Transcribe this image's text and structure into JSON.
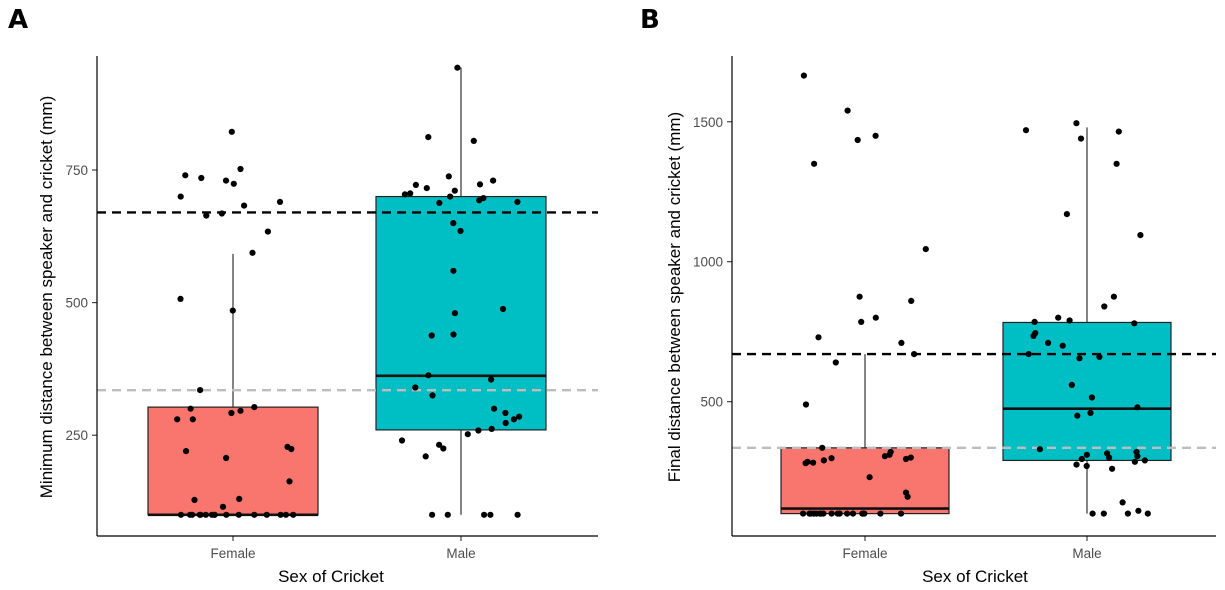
{
  "chart_data": [
    {
      "type": "box",
      "panel_label": "A",
      "xlabel": "Sex of Cricket",
      "ylabel": "Minimum distance between speaker and cricket (mm)",
      "categories": [
        "Female",
        "Male"
      ],
      "y_ticks": [
        250,
        500,
        750
      ],
      "ylim": [
        60,
        965
      ],
      "grid": false,
      "box_colors": [
        "#F8766D",
        "#00BFC4"
      ],
      "boxes": [
        {
          "category": "Female",
          "whisker_low": 100,
          "q1": 100,
          "median": 100,
          "q3": 303,
          "whisker_high": 592
        },
        {
          "category": "Male",
          "whisker_low": 100,
          "q1": 260,
          "median": 362,
          "q3": 700,
          "whisker_high": 943
        }
      ],
      "reference_lines": [
        {
          "value": 670,
          "style": "dashed",
          "color": "#000000"
        },
        {
          "value": 335,
          "style": "dashed",
          "color": "#bdbdbd"
        }
      ],
      "points": [
        {
          "category": "Female",
          "values": [
            822,
            752,
            740,
            735,
            730,
            724,
            700,
            690,
            683,
            668,
            664,
            634,
            594,
            507,
            485,
            335,
            303,
            300,
            296,
            292,
            280,
            280,
            228,
            224,
            220,
            207,
            163,
            128,
            115,
            130,
            100,
            100,
            100,
            100,
            100,
            100,
            100,
            100,
            100,
            100,
            100,
            100,
            100,
            100,
            100,
            100
          ]
        },
        {
          "category": "Male",
          "values": [
            943,
            812,
            805,
            738,
            730,
            723,
            722,
            716,
            711,
            706,
            704,
            700,
            697,
            693,
            690,
            688,
            650,
            635,
            560,
            488,
            480,
            440,
            438,
            363,
            355,
            340,
            325,
            300,
            292,
            285,
            280,
            273,
            262,
            259,
            252,
            240,
            232,
            225,
            210,
            100,
            100,
            100,
            100,
            100
          ]
        }
      ]
    },
    {
      "type": "box",
      "panel_label": "B",
      "xlabel": "Sex of Cricket",
      "ylabel": "Final distance between speaker and cricket (mm)",
      "categories": [
        "Female",
        "Male"
      ],
      "y_ticks": [
        500,
        1000,
        1500
      ],
      "ylim": [
        20,
        1735
      ],
      "grid": false,
      "box_colors": [
        "#F8766D",
        "#00BFC4"
      ],
      "boxes": [
        {
          "category": "Female",
          "whisker_low": 100,
          "q1": 100,
          "median": 118,
          "q3": 335,
          "whisker_high": 670
        },
        {
          "category": "Male",
          "whisker_low": 100,
          "q1": 290,
          "median": 475,
          "q3": 783,
          "whisker_high": 1480
        }
      ],
      "reference_lines": [
        {
          "value": 670,
          "style": "dashed",
          "color": "#000000"
        },
        {
          "value": 335,
          "style": "dashed",
          "color": "#bdbdbd"
        }
      ],
      "points": [
        {
          "category": "Female",
          "values": [
            1665,
            1540,
            1450,
            1435,
            1350,
            1045,
            875,
            860,
            800,
            785,
            730,
            710,
            670,
            640,
            490,
            335,
            320,
            310,
            305,
            300,
            298,
            295,
            290,
            285,
            282,
            280,
            230,
            175,
            160,
            100,
            100,
            100,
            100,
            100,
            100,
            100,
            100,
            100,
            100,
            100,
            100,
            100,
            100,
            100,
            100,
            100,
            100
          ]
        },
        {
          "category": "Male",
          "values": [
            1495,
            1470,
            1465,
            1440,
            1350,
            1170,
            1095,
            875,
            840,
            800,
            790,
            785,
            780,
            745,
            735,
            710,
            700,
            670,
            660,
            655,
            560,
            515,
            480,
            460,
            450,
            330,
            320,
            315,
            310,
            305,
            300,
            295,
            290,
            285,
            275,
            270,
            260,
            140,
            110,
            100,
            100,
            100,
            100
          ]
        }
      ]
    }
  ]
}
